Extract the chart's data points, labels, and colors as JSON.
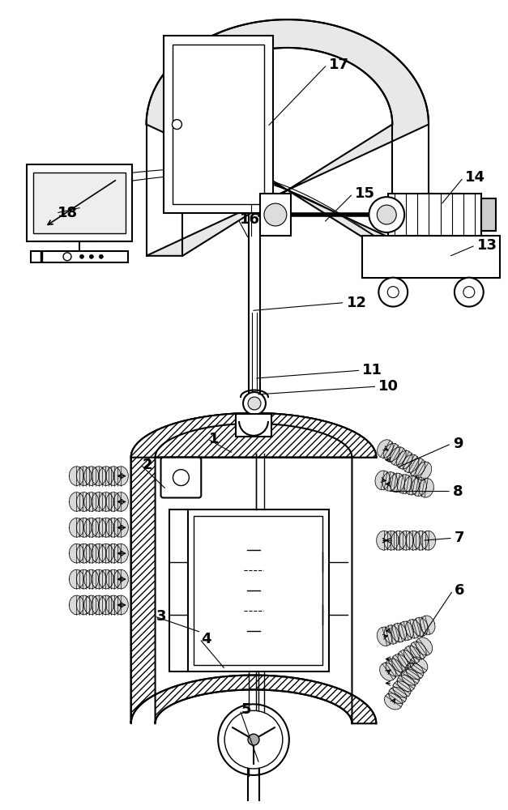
{
  "bg": "#ffffff",
  "lc": "#000000",
  "gc": "#d0d0d0",
  "figsize": [
    6.27,
    10.0
  ],
  "dpi": 100
}
